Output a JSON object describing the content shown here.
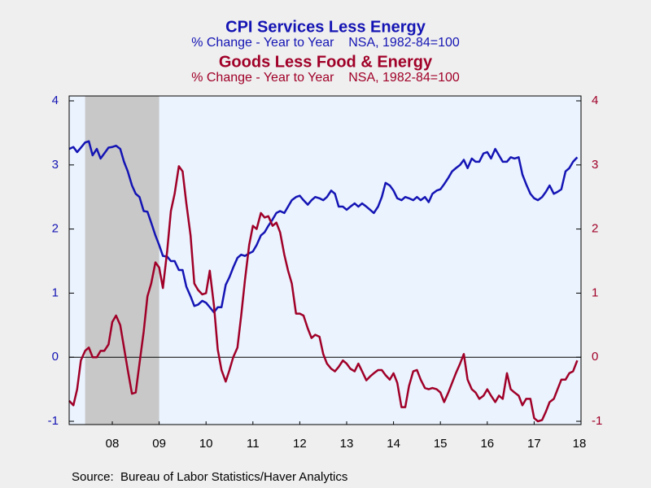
{
  "chart_data": {
    "type": "line",
    "series": [
      {
        "name": "CPI Services Less Energy",
        "subtitle": "% Change - Year to Year    NSA, 1982-84=100",
        "color": "#1414b4",
        "axis": "y",
        "values": [
          3.25,
          3.28,
          3.2,
          3.27,
          3.35,
          3.37,
          3.15,
          3.25,
          3.1,
          3.18,
          3.27,
          3.28,
          3.3,
          3.25,
          3.05,
          2.9,
          2.68,
          2.55,
          2.5,
          2.28,
          2.27,
          2.1,
          1.9,
          1.75,
          1.58,
          1.57,
          1.5,
          1.5,
          1.36,
          1.36,
          1.1,
          0.95,
          0.8,
          0.82,
          0.88,
          0.85,
          0.78,
          0.7,
          0.78,
          0.78,
          1.13,
          1.25,
          1.4,
          1.55,
          1.6,
          1.58,
          1.62,
          1.65,
          1.75,
          1.9,
          1.95,
          2.05,
          2.15,
          2.25,
          2.28,
          2.25,
          2.35,
          2.45,
          2.5,
          2.52,
          2.45,
          2.38,
          2.45,
          2.5,
          2.48,
          2.45,
          2.5,
          2.6,
          2.55,
          2.35,
          2.35,
          2.3,
          2.35,
          2.4,
          2.35,
          2.4,
          2.35,
          2.3,
          2.25,
          2.35,
          2.5,
          2.72,
          2.68,
          2.6,
          2.48,
          2.45,
          2.5,
          2.48,
          2.45,
          2.5,
          2.45,
          2.5,
          2.42,
          2.55,
          2.6,
          2.62,
          2.7,
          2.8,
          2.9,
          2.95,
          3.0,
          3.08,
          2.95,
          3.1,
          3.05,
          3.05,
          3.18,
          3.2,
          3.1,
          3.25,
          3.15,
          3.05,
          3.05,
          3.12,
          3.1,
          3.12,
          2.85,
          2.7,
          2.55,
          2.48,
          2.45,
          2.5,
          2.58,
          2.68,
          2.55,
          2.58,
          2.62,
          2.9,
          2.95,
          3.05,
          3.12
        ]
      },
      {
        "name": "Goods Less Food & Energy",
        "subtitle": "% Change - Year to Year    NSA, 1982-84=100",
        "color": "#a00028",
        "axis": "y2",
        "values": [
          -0.68,
          -0.75,
          -0.5,
          -0.05,
          0.1,
          0.15,
          0.0,
          0.0,
          0.1,
          0.1,
          0.2,
          0.55,
          0.65,
          0.5,
          0.15,
          -0.2,
          -0.57,
          -0.55,
          -0.1,
          0.4,
          0.95,
          1.15,
          1.48,
          1.4,
          1.08,
          1.65,
          2.28,
          2.55,
          2.98,
          2.9,
          2.4,
          1.9,
          1.15,
          1.05,
          0.98,
          1.0,
          1.35,
          0.8,
          0.12,
          -0.2,
          -0.38,
          -0.2,
          0.0,
          0.15,
          0.65,
          1.2,
          1.75,
          2.05,
          2.0,
          2.25,
          2.18,
          2.2,
          2.05,
          2.1,
          1.95,
          1.6,
          1.35,
          1.15,
          0.68,
          0.68,
          0.65,
          0.45,
          0.3,
          0.35,
          0.32,
          0.05,
          -0.1,
          -0.18,
          -0.22,
          -0.15,
          -0.05,
          -0.1,
          -0.18,
          -0.22,
          -0.1,
          -0.22,
          -0.36,
          -0.3,
          -0.25,
          -0.2,
          -0.2,
          -0.28,
          -0.35,
          -0.25,
          -0.4,
          -0.78,
          -0.78,
          -0.45,
          -0.22,
          -0.2,
          -0.35,
          -0.48,
          -0.5,
          -0.48,
          -0.5,
          -0.55,
          -0.7,
          -0.55,
          -0.4,
          -0.25,
          -0.1,
          0.05,
          -0.35,
          -0.5,
          -0.55,
          -0.65,
          -0.6,
          -0.5,
          -0.6,
          -0.7,
          -0.6,
          -0.65,
          -0.25,
          -0.5,
          -0.55,
          -0.6,
          -0.75,
          -0.65,
          -0.65,
          -0.95,
          -1.0,
          -0.98,
          -0.85,
          -0.7,
          -0.65,
          -0.5,
          -0.35,
          -0.35,
          -0.25,
          -0.22,
          -0.05
        ]
      }
    ],
    "x": [
      2007.58,
      2007.67,
      2007.75,
      2007.83,
      2007.92,
      2008.0,
      2008.08,
      2008.17,
      2008.25,
      2008.33,
      2008.42,
      2008.5,
      2008.58,
      2008.67,
      2008.75,
      2008.83,
      2008.92,
      2009.0,
      2009.08,
      2009.17,
      2009.25,
      2009.33,
      2009.42,
      2009.5,
      2009.58,
      2009.67,
      2009.75,
      2009.83,
      2009.92,
      2010.0,
      2010.08,
      2010.17,
      2010.25,
      2010.33,
      2010.42,
      2010.5,
      2010.58,
      2010.67,
      2010.75,
      2010.83,
      2010.92,
      2011.0,
      2011.08,
      2011.17,
      2011.25,
      2011.33,
      2011.42,
      2011.5,
      2011.58,
      2011.67,
      2011.75,
      2011.83,
      2011.92,
      2012.0,
      2012.08,
      2012.17,
      2012.25,
      2012.33,
      2012.42,
      2012.5,
      2012.58,
      2012.67,
      2012.75,
      2012.83,
      2012.92,
      2013.0,
      2013.08,
      2013.17,
      2013.25,
      2013.33,
      2013.42,
      2013.5,
      2013.58,
      2013.67,
      2013.75,
      2013.83,
      2013.92,
      2014.0,
      2014.08,
      2014.17,
      2014.25,
      2014.33,
      2014.42,
      2014.5,
      2014.58,
      2014.67,
      2014.75,
      2014.83,
      2014.92,
      2015.0,
      2015.08,
      2015.17,
      2015.25,
      2015.33,
      2015.42,
      2015.5,
      2015.58,
      2015.67,
      2015.75,
      2015.83,
      2015.92,
      2016.0,
      2016.08,
      2016.17,
      2016.25,
      2016.33,
      2016.42,
      2016.5,
      2016.58,
      2016.67,
      2016.75,
      2016.83,
      2016.92,
      2017.0,
      2017.08,
      2017.17,
      2017.25,
      2017.33,
      2017.42,
      2017.5,
      2017.58,
      2017.67,
      2017.75,
      2017.83,
      2017.92,
      2018.0,
      2018.08,
      2018.17,
      2018.25,
      2018.33,
      2018.42
    ],
    "xlim": [
      2007.58,
      2018.5
    ],
    "xticks": [
      {
        "value": 2008.5,
        "label": "08"
      },
      {
        "value": 2009.5,
        "label": "09"
      },
      {
        "value": 2010.5,
        "label": "10"
      },
      {
        "value": 2011.5,
        "label": "11"
      },
      {
        "value": 2012.5,
        "label": "12"
      },
      {
        "value": 2013.5,
        "label": "13"
      },
      {
        "value": 2014.5,
        "label": "14"
      },
      {
        "value": 2015.5,
        "label": "15"
      },
      {
        "value": 2016.5,
        "label": "16"
      },
      {
        "value": 2017.5,
        "label": "17"
      },
      {
        "value": 2018.5,
        "label": "18"
      }
    ],
    "ylim": [
      -1,
      4
    ],
    "yticks": [
      -1,
      0,
      1,
      2,
      3,
      4
    ],
    "y2lim": [
      -1,
      4
    ],
    "y2ticks": [
      -1,
      0,
      1,
      2,
      3,
      4
    ],
    "reference_line": 0,
    "shade": [
      2007.92,
      2009.5
    ],
    "source": "Source:  Bureau of Labor Statistics/Haver Analytics"
  }
}
